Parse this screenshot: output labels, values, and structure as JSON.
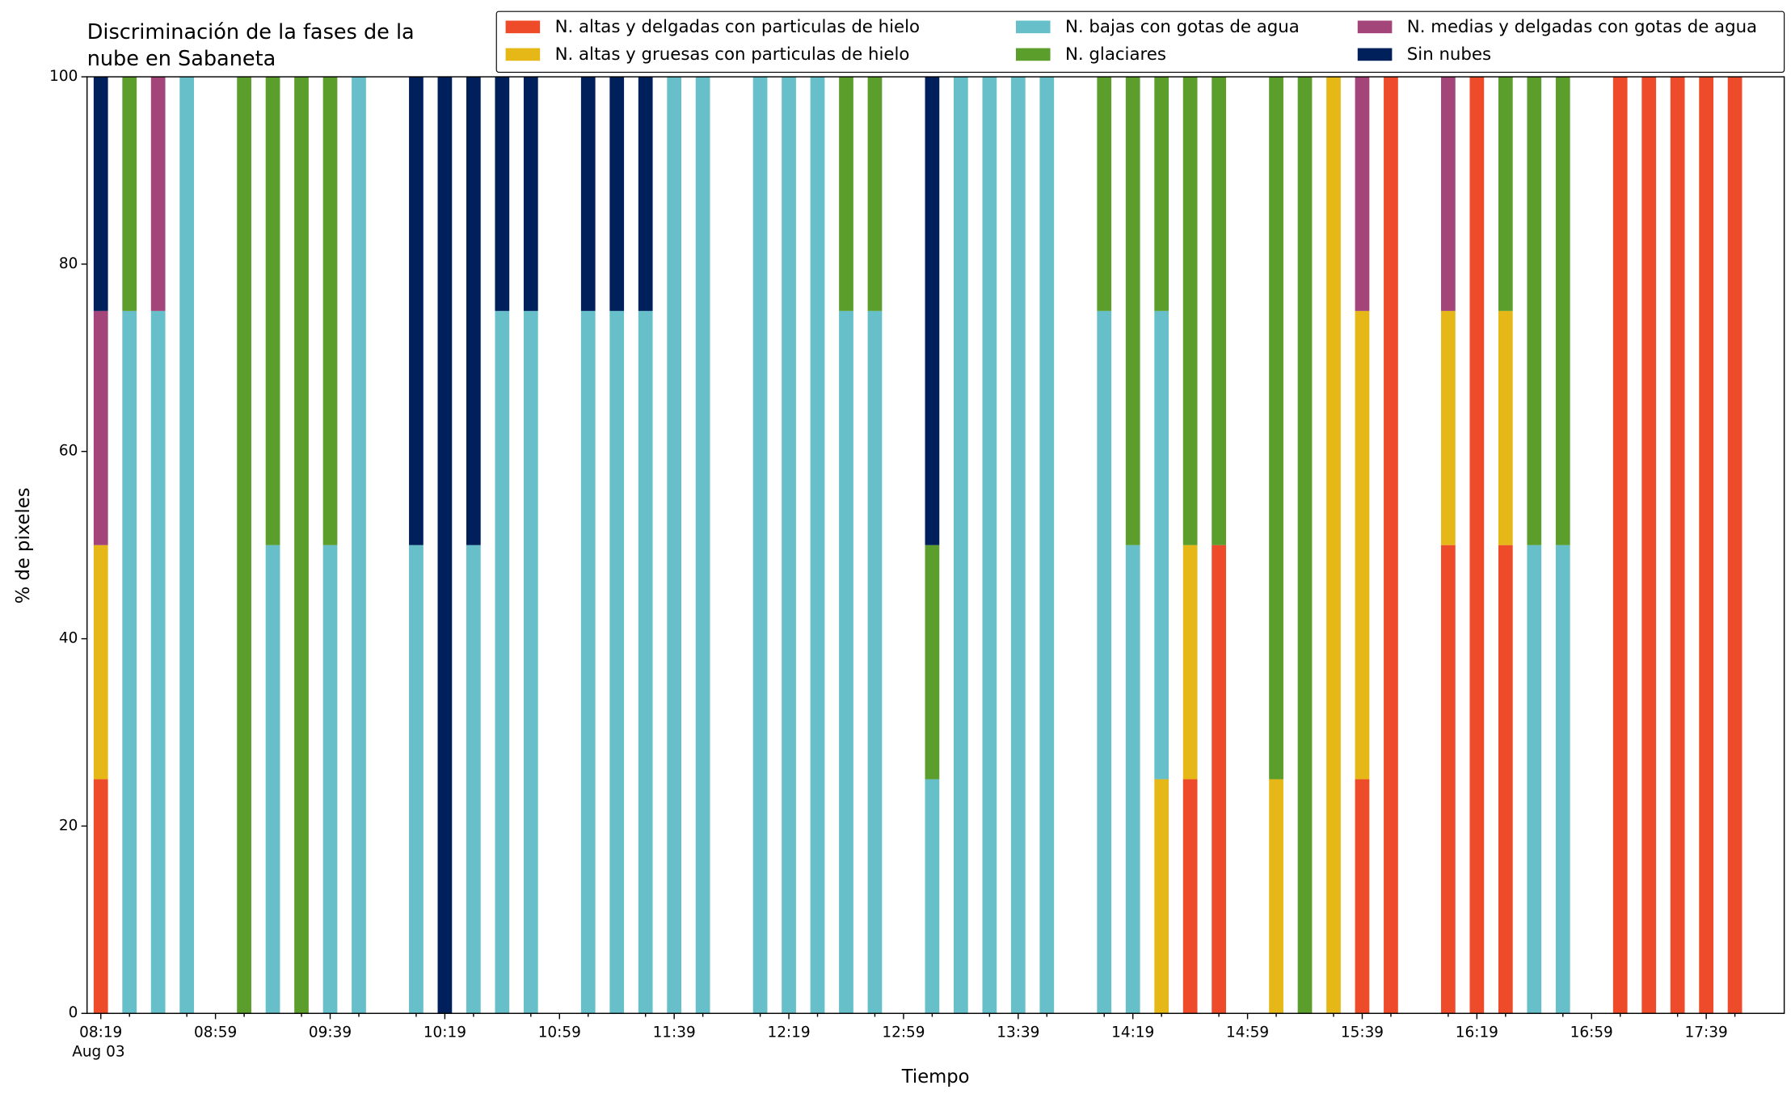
{
  "chart_data": {
    "type": "stacked_bar",
    "title": "Discriminación de la fases de la\nnube en Sabaneta",
    "x_label": "Tiempo",
    "y_label": "% de pixeles",
    "x_date_label": "Aug 03",
    "categories": [
      "08:19",
      null,
      null,
      null,
      "08:59",
      null,
      null,
      null,
      "09:39",
      null,
      null,
      null,
      "10:19",
      null,
      null,
      null,
      "10:59",
      null,
      null,
      null,
      "11:39",
      null,
      null,
      null,
      "12:19",
      null,
      null,
      null,
      "12:59",
      null,
      null,
      null,
      "13:39",
      null,
      null,
      null,
      "14:19",
      null,
      null,
      null,
      "14:59",
      null,
      null,
      null,
      "15:39",
      null,
      null,
      null,
      "16:19",
      null,
      null,
      null,
      "16:59",
      null,
      null,
      null,
      "17:39",
      null
    ],
    "series": [
      {
        "name": "N. altas y delgadas con particulas de hielo",
        "color": "#ee4b2b",
        "values": [
          25,
          0,
          0,
          0,
          0,
          0,
          0,
          0,
          0,
          0,
          0,
          0,
          0,
          0,
          0,
          0,
          0,
          0,
          0,
          0,
          0,
          0,
          0,
          0,
          0,
          0,
          0,
          0,
          0,
          0,
          0,
          0,
          0,
          0,
          0,
          0,
          0,
          0,
          25,
          50,
          0,
          0,
          0,
          0,
          25,
          100,
          0,
          50,
          100,
          50,
          0,
          0,
          0,
          100,
          100,
          100,
          100,
          100
        ]
      },
      {
        "name": "N. altas y gruesas con particulas de hielo",
        "color": "#e6b817",
        "values": [
          25,
          0,
          0,
          0,
          0,
          0,
          0,
          0,
          0,
          0,
          0,
          0,
          0,
          0,
          0,
          0,
          0,
          0,
          0,
          0,
          0,
          0,
          0,
          0,
          0,
          0,
          0,
          0,
          0,
          0,
          0,
          0,
          0,
          0,
          0,
          0,
          0,
          25,
          25,
          0,
          0,
          25,
          0,
          100,
          50,
          0,
          0,
          25,
          0,
          25,
          0,
          0,
          0,
          0,
          0,
          0,
          0,
          0
        ]
      },
      {
        "name": "N. bajas con gotas de agua",
        "color": "#67bfca",
        "values": [
          0,
          75,
          75,
          100,
          0,
          0,
          50,
          0,
          50,
          100,
          0,
          50,
          0,
          50,
          75,
          75,
          0,
          75,
          75,
          75,
          100,
          100,
          0,
          100,
          100,
          100,
          75,
          75,
          0,
          25,
          100,
          100,
          100,
          100,
          0,
          75,
          50,
          50,
          0,
          0,
          0,
          0,
          0,
          0,
          0,
          0,
          0,
          0,
          0,
          0,
          50,
          50,
          0,
          0,
          0,
          0,
          0,
          0
        ]
      },
      {
        "name": "N. glaciares",
        "color": "#5c9e2c",
        "values": [
          0,
          25,
          0,
          0,
          0,
          100,
          50,
          100,
          50,
          0,
          0,
          0,
          0,
          0,
          0,
          0,
          0,
          0,
          0,
          0,
          0,
          0,
          0,
          0,
          0,
          0,
          25,
          25,
          0,
          25,
          0,
          0,
          0,
          0,
          0,
          25,
          50,
          25,
          50,
          50,
          0,
          75,
          100,
          0,
          0,
          0,
          0,
          0,
          0,
          25,
          50,
          50,
          0,
          0,
          0,
          0,
          0,
          0
        ]
      },
      {
        "name": "N. medias y delgadas con gotas de agua",
        "color": "#a4457a",
        "values": [
          25,
          0,
          25,
          0,
          0,
          0,
          0,
          0,
          0,
          0,
          0,
          0,
          0,
          0,
          0,
          0,
          0,
          0,
          0,
          0,
          0,
          0,
          0,
          0,
          0,
          0,
          0,
          0,
          0,
          0,
          0,
          0,
          0,
          0,
          0,
          0,
          0,
          0,
          0,
          0,
          0,
          0,
          0,
          0,
          25,
          0,
          0,
          25,
          0,
          0,
          0,
          0,
          0,
          0,
          0,
          0,
          0,
          0
        ]
      },
      {
        "name": "Sin nubes",
        "color": "#00205b",
        "values": [
          25,
          0,
          0,
          0,
          0,
          0,
          0,
          0,
          0,
          0,
          0,
          50,
          100,
          50,
          25,
          25,
          0,
          25,
          25,
          25,
          0,
          0,
          0,
          0,
          0,
          0,
          0,
          0,
          0,
          50,
          0,
          0,
          0,
          0,
          0,
          0,
          0,
          0,
          0,
          0,
          0,
          0,
          0,
          0,
          0,
          0,
          0,
          0,
          0,
          0,
          0,
          0,
          0,
          0,
          0,
          0,
          0,
          0
        ]
      }
    ],
    "ylim": [
      0,
      100
    ],
    "yticks": [
      0,
      20,
      40,
      60,
      80,
      100
    ],
    "grid": false,
    "legend": "top"
  }
}
